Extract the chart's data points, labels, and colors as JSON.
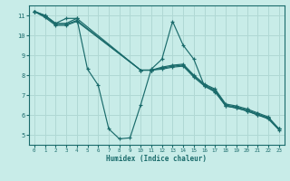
{
  "xlabel": "Humidex (Indice chaleur)",
  "xlim": [
    -0.5,
    23.5
  ],
  "ylim": [
    4.5,
    11.5
  ],
  "xticks": [
    0,
    1,
    2,
    3,
    4,
    5,
    6,
    7,
    8,
    9,
    10,
    11,
    12,
    13,
    14,
    15,
    16,
    17,
    18,
    19,
    20,
    21,
    22,
    23
  ],
  "yticks": [
    5,
    6,
    7,
    8,
    9,
    10,
    11
  ],
  "bg_color": "#c8ece8",
  "grid_color": "#b0d8d4",
  "line_color": "#1a6b6b",
  "lines": [
    {
      "x": [
        0,
        1,
        2,
        3,
        4,
        5,
        6,
        7,
        8,
        9,
        10,
        11,
        12,
        13,
        14,
        15,
        16,
        17,
        18,
        19,
        20,
        21,
        22,
        23
      ],
      "y": [
        11.2,
        11.0,
        10.6,
        10.85,
        10.85,
        8.3,
        7.5,
        5.3,
        4.8,
        4.85,
        6.5,
        8.3,
        8.8,
        10.7,
        9.5,
        8.8,
        7.45,
        7.15,
        6.45,
        6.35,
        6.2,
        6.0,
        5.85,
        5.3
      ]
    },
    {
      "x": [
        0,
        1,
        2,
        3,
        4,
        10,
        11,
        12,
        13,
        14,
        15,
        16,
        17,
        18,
        19,
        20,
        21,
        22,
        23
      ],
      "y": [
        11.2,
        11.0,
        10.6,
        10.6,
        10.85,
        8.25,
        8.25,
        8.4,
        8.5,
        8.55,
        8.0,
        7.55,
        7.3,
        6.55,
        6.45,
        6.3,
        6.1,
        5.9,
        5.3
      ]
    },
    {
      "x": [
        0,
        1,
        2,
        3,
        4,
        10,
        11,
        12,
        13,
        14,
        15,
        16,
        17,
        18,
        19,
        20,
        21,
        22,
        23
      ],
      "y": [
        11.2,
        10.95,
        10.55,
        10.55,
        10.75,
        8.25,
        8.25,
        8.35,
        8.45,
        8.5,
        7.95,
        7.5,
        7.25,
        6.5,
        6.4,
        6.25,
        6.05,
        5.85,
        5.3
      ]
    },
    {
      "x": [
        0,
        1,
        2,
        3,
        4,
        10,
        11,
        12,
        13,
        14,
        15,
        16,
        17,
        18,
        19,
        20,
        21,
        22,
        23
      ],
      "y": [
        11.2,
        10.9,
        10.5,
        10.5,
        10.7,
        8.25,
        8.25,
        8.3,
        8.4,
        8.45,
        7.9,
        7.45,
        7.2,
        6.45,
        6.35,
        6.2,
        6.0,
        5.8,
        5.25
      ]
    }
  ]
}
